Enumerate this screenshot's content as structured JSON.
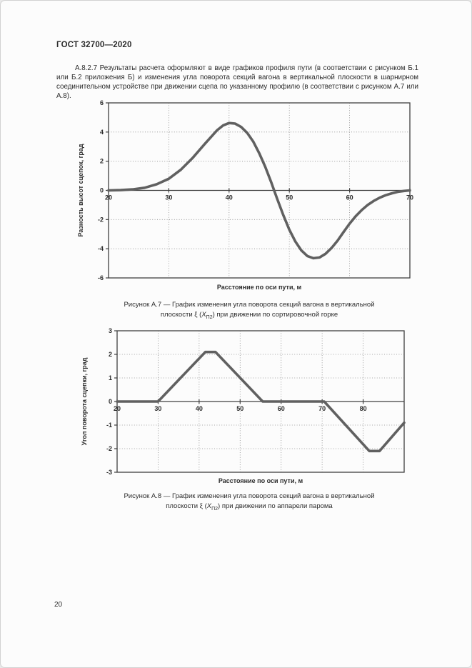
{
  "page": {
    "header": "ГОСТ 32700—2020",
    "paragraph": "А.8.2.7 Результаты расчета оформляют в виде графиков профиля пути (в соответствии с рисунком Б.1 или Б.2 приложения Б) и изменения угла поворота секций вагона в вертикальной плоскости в шарнирном соединительном устройстве при движении сцепа по указанному профилю (в соответствии с рисунком А.7 или А.8).",
    "page_number": "20"
  },
  "figure_a7": {
    "caption_line1": "Рисунок А.7 — График изменения угла поворота секций вагона в вертикальной",
    "caption_pre": "плоскости ξ (",
    "caption_x": "Х",
    "caption_sub": "П2",
    "caption_post": ") при движении по сортировочной горке"
  },
  "figure_a8": {
    "caption_line1": "Рисунок А.8 — График изменения угла поворота секций вагона в вертикальной",
    "caption_pre": "плоскости ξ (",
    "caption_x": "Х",
    "caption_sub": "П2",
    "caption_post": ") при движении по аппарели парома"
  },
  "chart_data": [
    {
      "type": "line",
      "title": "Рисунок А.7 — График изменения угла поворота секций вагона в вертикальной плоскости ξ (ХП2) при движении по сортировочной горке",
      "xlabel": "Расстояние по оси пути, м",
      "ylabel": "Разность высот сцепок, град",
      "xlim": [
        20,
        70
      ],
      "ylim": [
        -6,
        6
      ],
      "xticks": [
        20,
        30,
        40,
        50,
        60,
        70
      ],
      "yticks": [
        6,
        4,
        2,
        0,
        -2,
        -4,
        -6
      ],
      "grid": true,
      "legend": false,
      "points": [
        [
          20,
          0
        ],
        [
          22,
          0.02
        ],
        [
          24,
          0.07
        ],
        [
          26,
          0.18
        ],
        [
          28,
          0.42
        ],
        [
          30,
          0.8
        ],
        [
          32,
          1.42
        ],
        [
          34,
          2.25
        ],
        [
          36,
          3.2
        ],
        [
          38,
          4.12
        ],
        [
          39,
          4.45
        ],
        [
          40,
          4.62
        ],
        [
          41,
          4.58
        ],
        [
          42,
          4.35
        ],
        [
          43,
          3.95
        ],
        [
          44,
          3.35
        ],
        [
          45,
          2.55
        ],
        [
          46,
          1.62
        ],
        [
          47,
          0.55
        ],
        [
          48,
          -0.6
        ],
        [
          49,
          -1.7
        ],
        [
          50,
          -2.7
        ],
        [
          51,
          -3.5
        ],
        [
          52,
          -4.12
        ],
        [
          53,
          -4.5
        ],
        [
          54,
          -4.65
        ],
        [
          55,
          -4.6
        ],
        [
          56,
          -4.35
        ],
        [
          57,
          -3.95
        ],
        [
          58,
          -3.45
        ],
        [
          59,
          -2.85
        ],
        [
          60,
          -2.28
        ],
        [
          61,
          -1.78
        ],
        [
          62,
          -1.35
        ],
        [
          63,
          -1.0
        ],
        [
          64,
          -0.72
        ],
        [
          65,
          -0.5
        ],
        [
          66,
          -0.33
        ],
        [
          67,
          -0.2
        ],
        [
          68,
          -0.1
        ],
        [
          69,
          -0.04
        ],
        [
          70,
          0
        ]
      ]
    },
    {
      "type": "line",
      "title": "Рисунок А.8 — График изменения угла поворота секций вагона в вертикальной плоскости ξ (ХП2) при движении по аппарели парома",
      "xlabel": "Расстояние по оси пути, м",
      "ylabel": "Угол поворота сцепки, град",
      "xlim": [
        20,
        90
      ],
      "ylim": [
        -3,
        3
      ],
      "xticks": [
        20,
        30,
        40,
        50,
        60,
        70,
        80
      ],
      "gridx": [
        30,
        40,
        50,
        60,
        70,
        80
      ],
      "yticks": [
        3,
        2,
        1,
        0,
        -1,
        -2,
        -3
      ],
      "grid": true,
      "legend": false,
      "points": [
        [
          20,
          0
        ],
        [
          30,
          0
        ],
        [
          41.5,
          2.1
        ],
        [
          44,
          2.1
        ],
        [
          55.5,
          0
        ],
        [
          70.5,
          0
        ],
        [
          81.5,
          -2.1
        ],
        [
          84,
          -2.1
        ],
        [
          90,
          -0.9
        ]
      ]
    }
  ]
}
